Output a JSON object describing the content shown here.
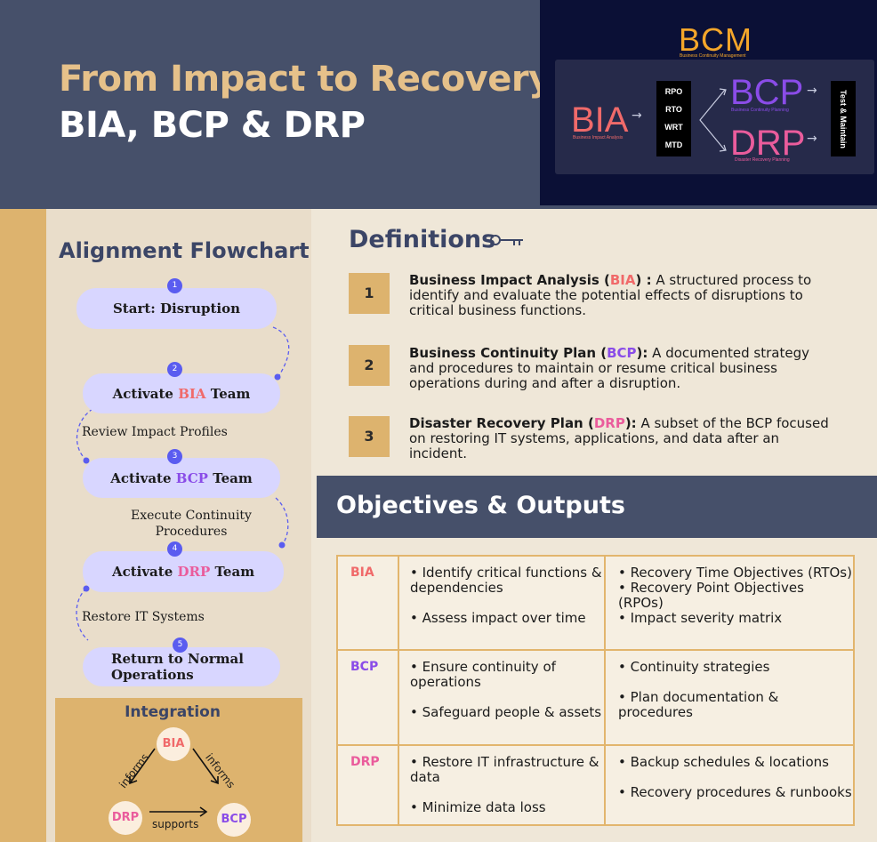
{
  "header": {
    "title_line1": "From Impact to Recovery:",
    "title_line2": "BIA, BCP & DRP"
  },
  "bcm_graphic": {
    "title": "BCM",
    "subtitle": "Business Continuity Management",
    "bia": "BIA",
    "bia_sub": "Business Impact Analysis",
    "metrics": [
      "RPO",
      "RTO",
      "WRT",
      "MTD"
    ],
    "bcp": "BCP",
    "bcp_sub": "Business Continuity Planning",
    "drp": "DRP",
    "drp_sub": "Disaster Recovery Planning",
    "test_label": "Test & Maintain"
  },
  "flowchart": {
    "title": "Alignment Flowchart",
    "steps": [
      {
        "num": "1",
        "pre": "Start: Disruption",
        "hl": "",
        "post": ""
      },
      {
        "num": "2",
        "pre": "Activate ",
        "hl": "BIA",
        "post": " Team"
      },
      {
        "num": "3",
        "pre": "Activate ",
        "hl": "BCP",
        "post": " Team"
      },
      {
        "num": "4",
        "pre": "Activate ",
        "hl": "DRP",
        "post": " Team"
      },
      {
        "num": "5",
        "pre": "Return to Normal Operations",
        "hl": "",
        "post": ""
      }
    ],
    "notes": [
      "Review Impact Profiles",
      "Execute Continuity Procedures",
      "Restore IT Systems"
    ]
  },
  "integration": {
    "title": "Integration",
    "nodes": [
      "BIA",
      "DRP",
      "BCP"
    ],
    "edges": [
      "informs",
      "informs",
      "supports"
    ]
  },
  "definitions": {
    "title": "Definitions",
    "items": [
      {
        "num": "1",
        "name_pre": "Business Impact Analysis (",
        "abbr": "BIA",
        "name_post": ") :",
        "text": " A structured process to identify and evaluate the potential effects of disruptions to critical business functions."
      },
      {
        "num": "2",
        "name_pre": "Business Continuity Plan (",
        "abbr": "BCP",
        "name_post": "):",
        "text": " A documented strategy and procedures to maintain or resume critical business operations during and after a disruption."
      },
      {
        "num": "3",
        "name_pre": "Disaster Recovery Plan (",
        "abbr": "DRP",
        "name_post": "):",
        "text": " A subset of the BCP focused on restoring IT systems, applications, and data after an incident."
      }
    ]
  },
  "objectives": {
    "title": "Objectives & Outputs",
    "rows": [
      {
        "key": "BIA",
        "objectives": [
          "• Identify critical functions & dependencies",
          "• Assess impact over time"
        ],
        "outputs": [
          "• Recovery Time Objectives (RTOs)",
          "• Recovery Point Objectives (RPOs)",
          "• Impact severity matrix"
        ]
      },
      {
        "key": "BCP",
        "objectives": [
          "• Ensure continuity of operations",
          "• Safeguard people & assets"
        ],
        "outputs": [
          "• Continuity strategies",
          "• Plan documentation & procedures"
        ]
      },
      {
        "key": "DRP",
        "objectives": [
          "• Restore IT infrastructure & data",
          "• Minimize data loss"
        ],
        "outputs": [
          "• Backup schedules & locations",
          "• Recovery procedures & runbooks"
        ]
      }
    ]
  },
  "colors": {
    "bia": "#f06a6a",
    "bcp": "#8a4ce8",
    "drp": "#ea5c9c",
    "accent_gold": "#ddb36e",
    "navy": "#46506a"
  }
}
